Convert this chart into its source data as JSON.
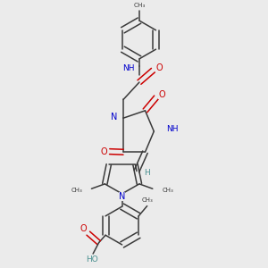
{
  "background_color": "#ebebeb",
  "bond_color": "#3a3a3a",
  "nitrogen_color": "#0000cc",
  "oxygen_color": "#cc0000",
  "teal_color": "#4a9090",
  "figsize": [
    3.0,
    3.0
  ],
  "dpi": 100,
  "xlim": [
    0,
    10
  ],
  "ylim": [
    0,
    10
  ]
}
